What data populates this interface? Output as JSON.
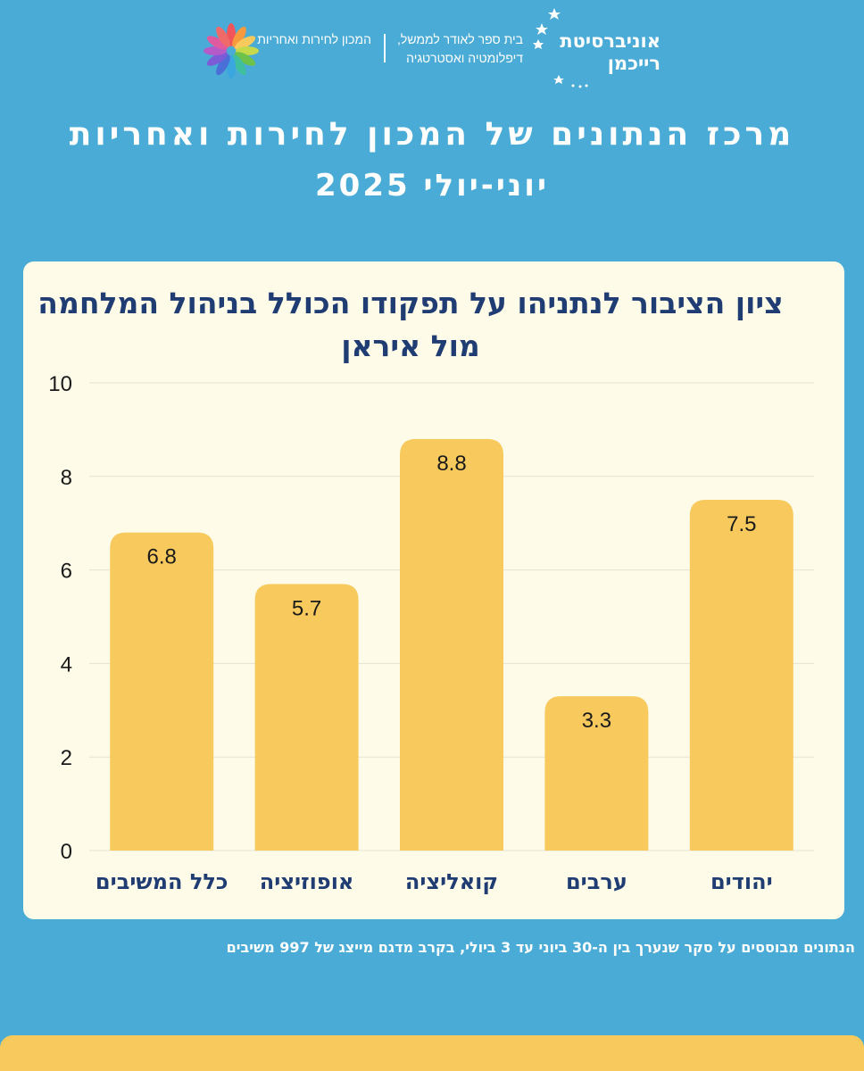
{
  "logos": {
    "university_name": "אוניברסיטת רייכמן",
    "school_name": "בית ספר לאודר לממשל, דיפלומטיה ואסטרטגיה",
    "institute_name": "המכון לחירות ואחריות"
  },
  "header": {
    "title": "מרכז הנתונים של המכון לחירות ואחריות",
    "subtitle": "יוני-יולי 2025"
  },
  "chart_data": {
    "type": "bar",
    "title": "ציון הציבור לנתניהו על תפקודו הכולל בניהול המלחמה מול איראן",
    "xlabel": "",
    "ylabel": "",
    "categories": [
      "יהודים",
      "ערבים",
      "קואליציה",
      "אופוזיציה",
      "כלל המשיבים"
    ],
    "values": [
      7.5,
      3.3,
      8.8,
      5.7,
      6.8
    ],
    "value_labels": [
      "7.5",
      "3.3",
      "8.8",
      "5.7",
      "6.8"
    ],
    "ylim": [
      0,
      10
    ],
    "yticks": [
      "0",
      "2",
      "4",
      "6",
      "8",
      "10"
    ],
    "category_order": "right-to-left",
    "grid": true,
    "bar_color": "#f8ca5e",
    "grid_color": "#e4e2d2",
    "text_color": "#1f3c73",
    "tick_color": "#1a1a1a"
  },
  "footnote": "הנתונים מבוססים על סקר שנערך בין ה-30 ביוני עד 3 ביולי,  בקרב מדגם מייצג של 997 משיבים",
  "colors": {
    "background": "#4aabd6",
    "card": "#fefce8",
    "accent": "#f8ca5e",
    "navy": "#1f3c73"
  }
}
